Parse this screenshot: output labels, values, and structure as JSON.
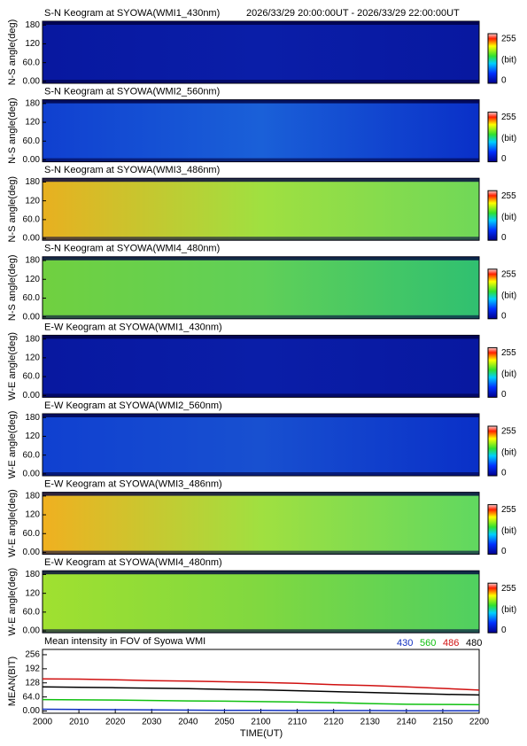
{
  "header": "2026/33/29 20:00:00UT - 2026/33/29 22:00:00UT",
  "chart_data": [
    {
      "type": "keogram",
      "title": "S-N Keogram at SYOWA(WMI1_430nm)",
      "ylabel": "N-S angle(deg)",
      "ylim": [
        -6,
        192
      ],
      "yticks": [
        {
          "value": 0,
          "label": "0.00"
        },
        {
          "value": 60,
          "label": "60.0"
        },
        120,
        180
      ],
      "colorbar": {
        "max": 255,
        "unit": "(bit)",
        "min": 0
      }
    },
    {
      "type": "keogram",
      "title": "S-N Keogram at SYOWA(WMI2_560nm)",
      "ylabel": "N-S angle(deg)",
      "ylim": [
        -6,
        192
      ],
      "yticks": [
        {
          "value": 0,
          "label": "0.00"
        },
        {
          "value": 60,
          "label": "60.0"
        },
        120,
        180
      ],
      "colorbar": {
        "max": 255,
        "unit": "(bit)",
        "min": 0
      }
    },
    {
      "type": "keogram",
      "title": "S-N Keogram at SYOWA(WMI3_486nm)",
      "ylabel": "N-S angle(deg)",
      "ylim": [
        -6,
        192
      ],
      "yticks": [
        {
          "value": 0,
          "label": "0.00"
        },
        {
          "value": 60,
          "label": "60.0"
        },
        120,
        180
      ],
      "colorbar": {
        "max": 255,
        "unit": "(bit)",
        "min": 0
      }
    },
    {
      "type": "keogram",
      "title": "S-N Keogram at SYOWA(WMI4_480nm)",
      "ylabel": "N-S angle(deg)",
      "ylim": [
        -6,
        192
      ],
      "yticks": [
        {
          "value": 0,
          "label": "0.00"
        },
        {
          "value": 60,
          "label": "60.0"
        },
        120,
        180
      ],
      "colorbar": {
        "max": 255,
        "unit": "(bit)",
        "min": 0
      }
    },
    {
      "type": "keogram",
      "title": "E-W Keogram at SYOWA(WMI1_430nm)",
      "ylabel": "W-E angle(deg)",
      "ylim": [
        -6,
        192
      ],
      "yticks": [
        {
          "value": 0,
          "label": "0.00"
        },
        {
          "value": 60,
          "label": "60.0"
        },
        120,
        180
      ],
      "colorbar": {
        "max": 255,
        "unit": "(bit)",
        "min": 0
      }
    },
    {
      "type": "keogram",
      "title": "E-W Keogram at SYOWA(WMI2_560nm)",
      "ylabel": "W-E angle(deg)",
      "ylim": [
        -6,
        192
      ],
      "yticks": [
        {
          "value": 0,
          "label": "0.00"
        },
        {
          "value": 60,
          "label": "60.0"
        },
        120,
        180
      ],
      "colorbar": {
        "max": 255,
        "unit": "(bit)",
        "min": 0
      }
    },
    {
      "type": "keogram",
      "title": "E-W Keogram at SYOWA(WMI3_486nm)",
      "ylabel": "W-E angle(deg)",
      "ylim": [
        -6,
        192
      ],
      "yticks": [
        {
          "value": 0,
          "label": "0.00"
        },
        {
          "value": 60,
          "label": "60.0"
        },
        120,
        180
      ],
      "colorbar": {
        "max": 255,
        "unit": "(bit)",
        "min": 0
      }
    },
    {
      "type": "keogram",
      "title": "E-W Keogram at SYOWA(WMI4_480nm)",
      "ylabel": "W-E angle(deg)",
      "ylim": [
        -6,
        192
      ],
      "yticks": [
        {
          "value": 0,
          "label": "0.00"
        },
        {
          "value": 60,
          "label": "60.0"
        },
        120,
        180
      ],
      "colorbar": {
        "max": 255,
        "unit": "(bit)",
        "min": 0
      }
    },
    {
      "type": "line",
      "title": "Mean intensity in FOV of Syowa WMI",
      "ylabel": "MEAN(BIT)",
      "xlabel": "TIME(UT)",
      "categories": [
        "2000",
        "2010",
        "2020",
        "2030",
        "2040",
        "2050",
        "2100",
        "2110",
        "2120",
        "2130",
        "2140",
        "2150",
        "2200"
      ],
      "ylim": [
        -10,
        280
      ],
      "yticks": [
        {
          "value": 0,
          "label": "0.00"
        },
        {
          "value": 64,
          "label": "64.0"
        },
        128,
        192,
        256
      ],
      "series": [
        {
          "name": "430",
          "color": "#1030c0",
          "values": [
            8,
            7,
            6,
            5,
            4,
            3,
            3,
            2,
            2,
            2,
            1,
            1,
            1
          ]
        },
        {
          "name": "560",
          "color": "#10c010",
          "values": [
            52,
            51,
            50,
            48,
            46,
            45,
            43,
            41,
            38,
            34,
            31,
            30,
            29
          ]
        },
        {
          "name": "486",
          "color": "#d01010",
          "values": [
            146,
            145,
            142,
            138,
            136,
            133,
            130,
            126,
            120,
            116,
            110,
            103,
            95
          ]
        },
        {
          "name": "480",
          "color": "#000000",
          "values": [
            110,
            108,
            106,
            104,
            102,
            98,
            96,
            92,
            88,
            84,
            80,
            76,
            73
          ]
        }
      ]
    }
  ]
}
